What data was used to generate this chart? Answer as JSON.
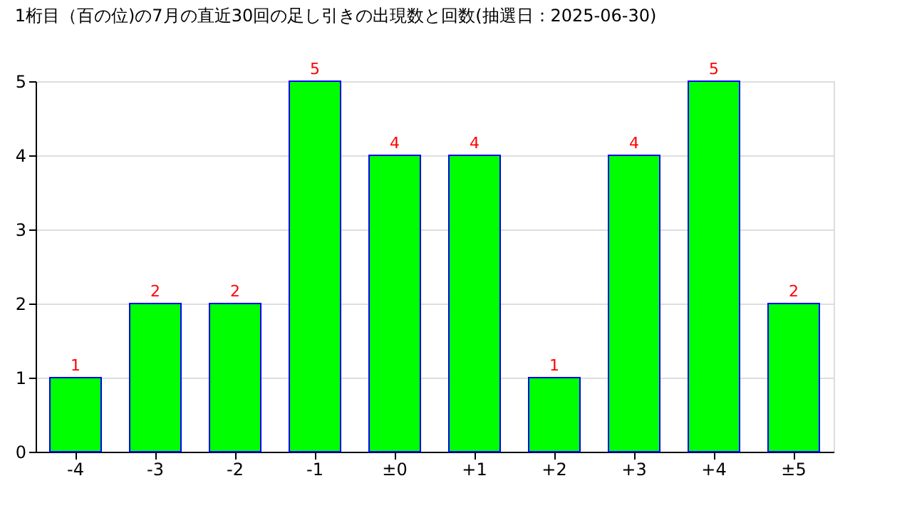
{
  "chart_data": {
    "type": "bar",
    "title": "1桁目（百の位)の7月の直近30回の足し引きの出現数と回数(抽選日：2025-06-30)",
    "categories": [
      "-4",
      "-3",
      "-2",
      "-1",
      "±0",
      "+1",
      "+2",
      "+3",
      "+4",
      "±5"
    ],
    "values": [
      1,
      2,
      2,
      5,
      4,
      4,
      1,
      4,
      5,
      2
    ],
    "color": "#00ff00",
    "data_labels": true,
    "ylim": [
      0,
      5
    ],
    "yticks": [
      0,
      1,
      2,
      3,
      4,
      5
    ],
    "grid": "y"
  }
}
